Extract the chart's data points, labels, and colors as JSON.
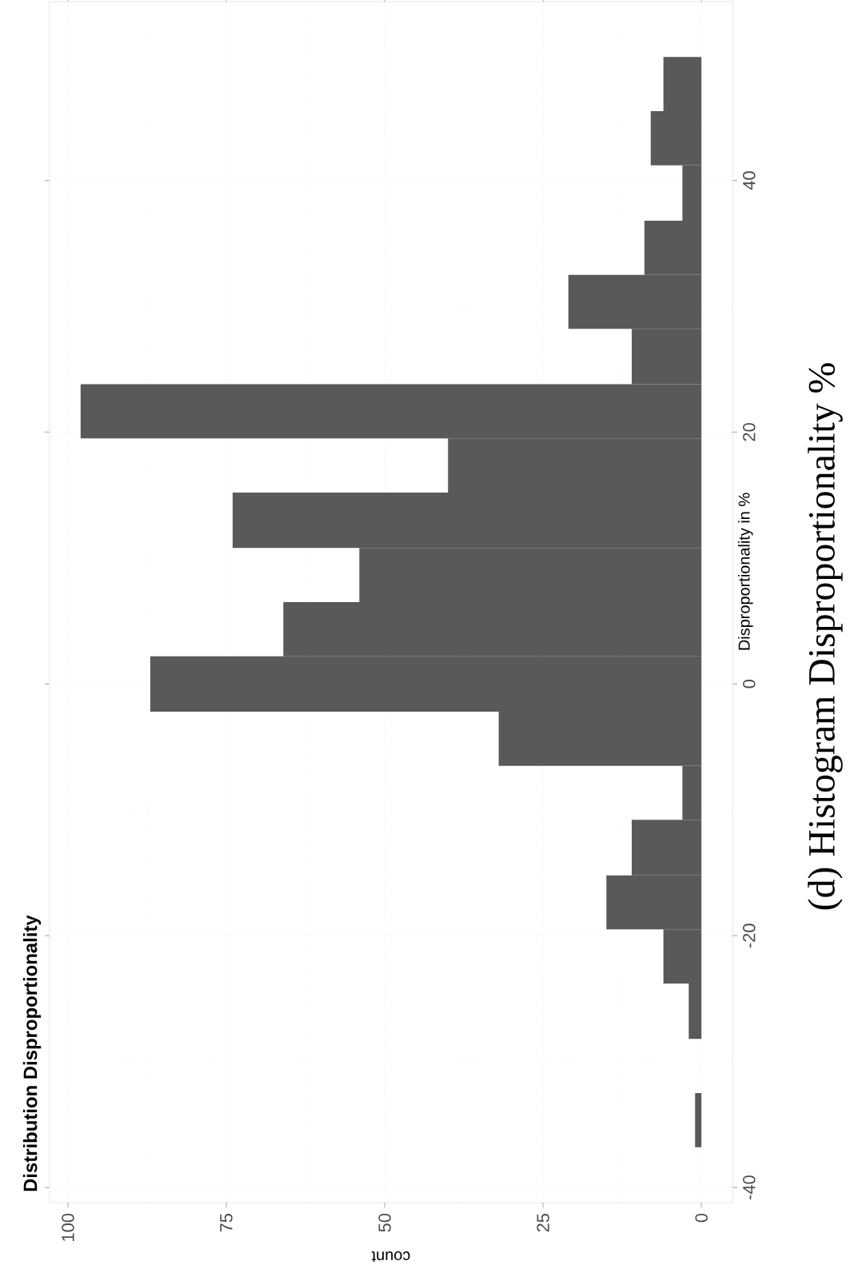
{
  "chart_data": {
    "type": "histogram",
    "orientation": "horizontal",
    "title": "Distribution Disproportionality",
    "xlabel": "count",
    "ylabel": "Disproportionality in %",
    "annotations": [
      "(d) Histogram Disproportionality %"
    ],
    "bins": [
      -36.8,
      -32.5,
      -28.2,
      -23.8,
      -19.5,
      -15.2,
      -10.8,
      -6.5,
      -2.2,
      2.2,
      6.5,
      10.8,
      15.2,
      19.5,
      23.8,
      28.2,
      32.5,
      36.8,
      41.2,
      45.5,
      49.8
    ],
    "values": [
      1,
      0,
      2,
      6,
      15,
      11,
      3,
      32,
      87,
      66,
      54,
      74,
      40,
      98,
      11,
      21,
      9,
      3,
      8,
      6
    ],
    "color": "#595959",
    "xlim": [
      102.9,
      -4.9
    ],
    "ylim": [
      -41.2,
      54.2
    ],
    "xticks": [
      0,
      25,
      50,
      75,
      100
    ],
    "yticks": [
      -40,
      -20,
      0,
      20,
      40
    ],
    "grid": true
  }
}
